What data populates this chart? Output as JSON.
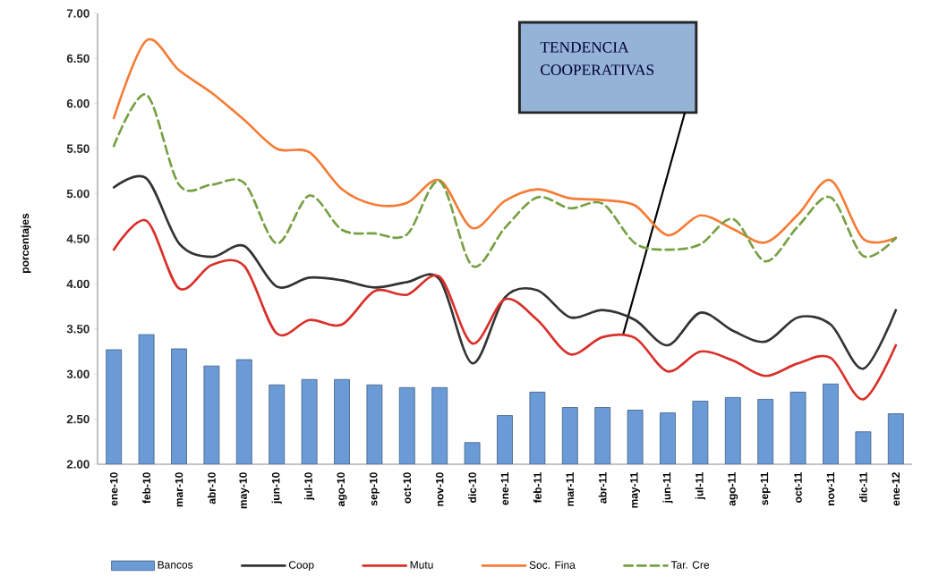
{
  "chart_data": {
    "type": "bar",
    "ylabel": "porcentajes",
    "categories": [
      "ene-10",
      "feb-10",
      "mar-10",
      "abr-10",
      "may-10",
      "jun-10",
      "jul-10",
      "ago-10",
      "sep-10",
      "oct-10",
      "nov-10",
      "dic-10",
      "ene-11",
      "feb-11",
      "mar-11",
      "abr-11",
      "may-11",
      "jun-11",
      "jul-11",
      "ago-11",
      "sep-11",
      "oct-11",
      "nov-11",
      "dic-11",
      "ene-12"
    ],
    "series": [
      {
        "name": "Bancos",
        "color": "#6b9bd6",
        "values": [
          3.27,
          3.44,
          3.28,
          3.09,
          3.16,
          2.88,
          2.94,
          2.94,
          2.88,
          2.85,
          2.85,
          2.24,
          2.54,
          2.8,
          2.63,
          2.63,
          2.6,
          2.57,
          2.7,
          2.74,
          2.72,
          2.8,
          2.89,
          2.36,
          2.56
        ]
      },
      {
        "name": "Coop",
        "type": "line",
        "color": "#333333",
        "values": [
          5.07,
          5.17,
          4.45,
          4.3,
          4.42,
          3.97,
          4.07,
          4.04,
          3.96,
          4.02,
          4.05,
          3.12,
          3.85,
          3.93,
          3.63,
          3.71,
          3.6,
          3.32,
          3.68,
          3.48,
          3.36,
          3.63,
          3.55,
          3.06,
          3.71
        ]
      },
      {
        "name": "Mutu",
        "type": "line",
        "color": "#d9302a",
        "values": [
          4.38,
          4.7,
          3.95,
          4.21,
          4.2,
          3.45,
          3.6,
          3.55,
          3.92,
          3.88,
          4.08,
          3.34,
          3.83,
          3.6,
          3.22,
          3.41,
          3.4,
          3.03,
          3.25,
          3.15,
          2.98,
          3.12,
          3.18,
          2.72,
          3.32
        ]
      },
      {
        "name": "Soc. Fina",
        "type": "line",
        "color": "#f57c35",
        "values": [
          5.84,
          6.7,
          6.37,
          6.12,
          5.82,
          5.5,
          5.46,
          5.05,
          4.88,
          4.9,
          5.15,
          4.62,
          4.92,
          5.05,
          4.95,
          4.93,
          4.87,
          4.54,
          4.76,
          4.61,
          4.46,
          4.77,
          5.15,
          4.5,
          4.51
        ]
      },
      {
        "name": "Tar. Cre",
        "type": "line",
        "color": "#77a043",
        "line_style": "dashed",
        "values": [
          5.53,
          6.1,
          5.1,
          5.1,
          5.12,
          4.45,
          4.98,
          4.6,
          4.56,
          4.55,
          5.14,
          4.2,
          4.62,
          4.96,
          4.84,
          4.89,
          4.45,
          4.38,
          4.44,
          4.72,
          4.25,
          4.64,
          4.96,
          4.31,
          4.51
        ]
      }
    ],
    "ylim": [
      2,
      7
    ],
    "yticks": [
      {
        "value": 2,
        "label": "2.00"
      },
      {
        "value": 2.5,
        "label": "2.50"
      },
      {
        "value": 3,
        "label": "3.00"
      },
      {
        "value": 3.5,
        "label": "3.50"
      },
      {
        "value": 4,
        "label": "4.00"
      },
      {
        "value": 4.5,
        "label": "4.50"
      },
      {
        "value": 5,
        "label": "5.00"
      },
      {
        "value": 5.5,
        "label": "5.50"
      },
      {
        "value": 6,
        "label": "6.00"
      },
      {
        "value": 6.5,
        "label": "6.50"
      },
      {
        "value": 7,
        "label": "7.00"
      }
    ],
    "legend": "bottom",
    "annotations": [
      "TENDENCIA COOPERATIVAS"
    ]
  }
}
